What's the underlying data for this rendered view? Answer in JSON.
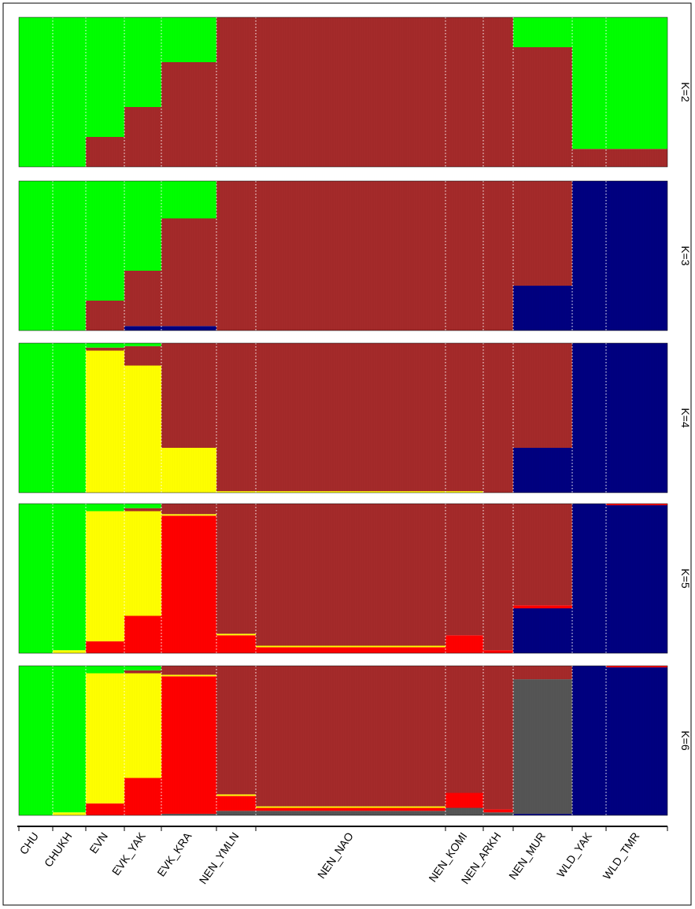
{
  "chart_data": {
    "type": "admixture",
    "categories": [
      "CHU",
      "CHUKH",
      "EVN",
      "EVK_YAK",
      "EVK_KRA",
      "NEN_YMLN",
      "NEN_NAO",
      "NEN_KOMI",
      "NEN_ARKH",
      "NEN_MUR",
      "WLD_YAK",
      "WLD_TMR"
    ],
    "ylim": [
      0,
      1
    ],
    "panels": [
      {
        "title": "K=2",
        "series": [
          {
            "color": "#a52a2a",
            "values": [
              0,
              0,
              0.2,
              0.4,
              0.7,
              1,
              1,
              1,
              1,
              0.8,
              0.12,
              0.12
            ]
          },
          {
            "color": "#00ff00",
            "values": [
              1,
              1,
              0.8,
              0.6,
              0.3,
              0,
              0,
              0,
              0,
              0.2,
              0.88,
              0.88
            ]
          }
        ]
      },
      {
        "title": "K=3",
        "series": [
          {
            "color": "#000080",
            "values": [
              0,
              0,
              0,
              0.03,
              0.03,
              0,
              0,
              0,
              0,
              0.3,
              1,
              1
            ]
          },
          {
            "color": "#a52a2a",
            "values": [
              0,
              0,
              0.2,
              0.37,
              0.72,
              1,
              1,
              1,
              1,
              0.7,
              0,
              0
            ]
          },
          {
            "color": "#00ff00",
            "values": [
              1,
              1,
              0.8,
              0.6,
              0.25,
              0,
              0,
              0,
              0,
              0,
              0,
              0
            ]
          }
        ]
      },
      {
        "title": "K=4",
        "series": [
          {
            "color": "#000080",
            "values": [
              0,
              0,
              0,
              0,
              0,
              0,
              0,
              0,
              0,
              0.3,
              1,
              1
            ]
          },
          {
            "color": "#ffff00",
            "values": [
              0,
              0,
              0.95,
              0.85,
              0.3,
              0.01,
              0.01,
              0.01,
              0,
              0,
              0,
              0
            ]
          },
          {
            "color": "#a52a2a",
            "values": [
              0,
              0,
              0.02,
              0.13,
              0.7,
              0.99,
              0.99,
              0.99,
              1,
              0.7,
              0,
              0
            ]
          },
          {
            "color": "#00ff00",
            "values": [
              1,
              1,
              0.03,
              0.02,
              0,
              0,
              0,
              0,
              0,
              0,
              0,
              0
            ]
          }
        ]
      },
      {
        "title": "K=5",
        "series": [
          {
            "color": "#000080",
            "values": [
              0,
              0,
              0,
              0,
              0,
              0,
              0,
              0,
              0,
              0.3,
              1,
              0.99
            ]
          },
          {
            "color": "#ff0000",
            "values": [
              0,
              0,
              0.08,
              0.25,
              0.92,
              0.12,
              0.04,
              0.12,
              0.02,
              0.02,
              0,
              0.01
            ]
          },
          {
            "color": "#ffff00",
            "values": [
              0,
              0.02,
              0.87,
              0.7,
              0.01,
              0.01,
              0.01,
              0,
              0,
              0,
              0,
              0
            ]
          },
          {
            "color": "#a52a2a",
            "values": [
              0,
              0,
              0,
              0.02,
              0.07,
              0.87,
              0.95,
              0.88,
              0.98,
              0.68,
              0,
              0
            ]
          },
          {
            "color": "#00ff00",
            "values": [
              1,
              0.98,
              0.05,
              0.03,
              0,
              0,
              0,
              0,
              0,
              0,
              0,
              0
            ]
          }
        ]
      },
      {
        "title": "K=6",
        "series": [
          {
            "color": "#000080",
            "values": [
              0,
              0,
              0,
              0,
              0,
              0,
              0,
              0,
              0,
              0.01,
              1,
              0.99
            ]
          },
          {
            "color": "#555555",
            "values": [
              0,
              0,
              0,
              0,
              0.01,
              0.03,
              0.03,
              0.05,
              0.02,
              0.9,
              0,
              0
            ]
          },
          {
            "color": "#ff0000",
            "values": [
              0,
              0,
              0.08,
              0.25,
              0.92,
              0.1,
              0.02,
              0.1,
              0.02,
              0,
              0,
              0.01
            ]
          },
          {
            "color": "#ffff00",
            "values": [
              0,
              0.02,
              0.87,
              0.7,
              0.01,
              0.01,
              0.01,
              0,
              0,
              0,
              0,
              0
            ]
          },
          {
            "color": "#a52a2a",
            "values": [
              0,
              0,
              0,
              0.02,
              0.06,
              0.86,
              0.94,
              0.85,
              0.96,
              0.09,
              0,
              0
            ]
          },
          {
            "color": "#00ff00",
            "values": [
              1,
              0.98,
              0.05,
              0.03,
              0,
              0,
              0,
              0,
              0,
              0,
              0,
              0
            ]
          }
        ]
      }
    ]
  }
}
